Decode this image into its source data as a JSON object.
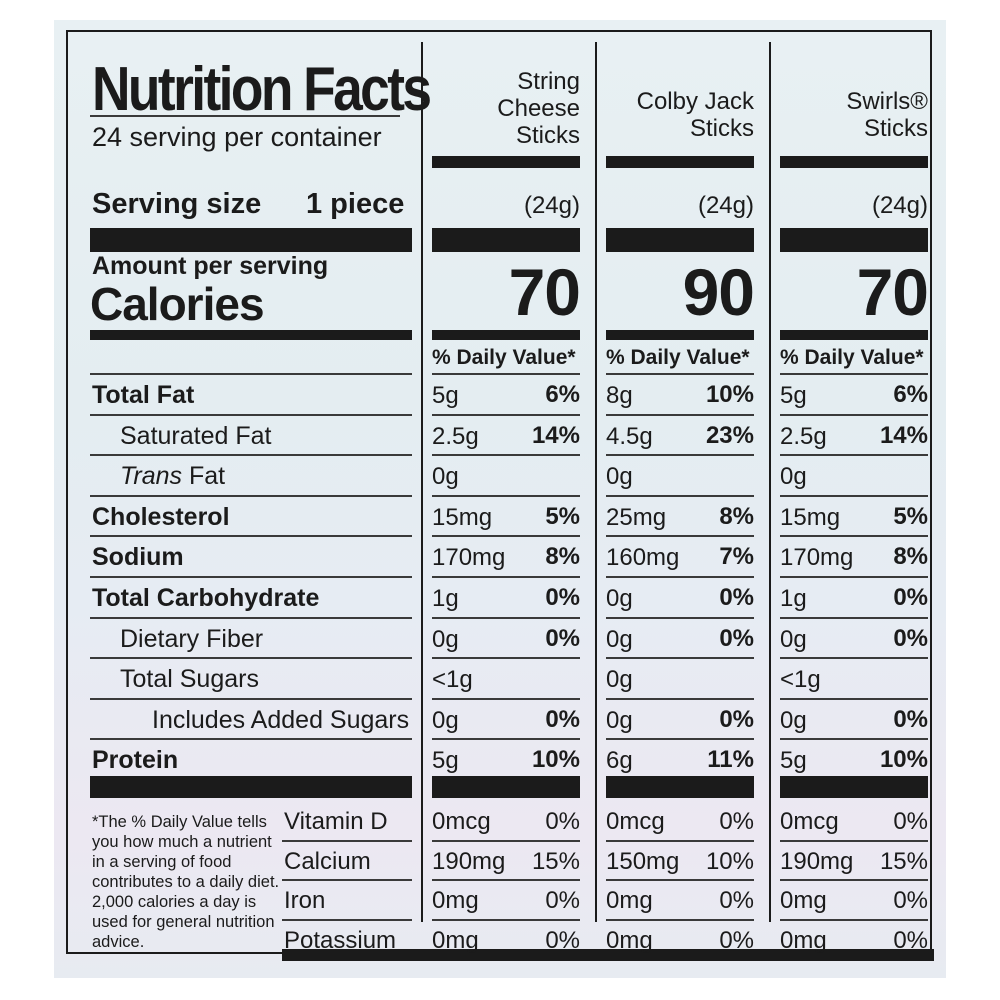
{
  "title": "Nutrition Facts",
  "servings_per_container": "24 serving per container",
  "serving_size_label": "Serving size",
  "serving_size_value": "1 piece",
  "amount_per_serving": "Amount per serving",
  "calories_label": "Calories",
  "dv_header": "% Daily Value*",
  "products": [
    {
      "name_lines": [
        "String",
        "Cheese",
        "Sticks"
      ],
      "size": "(24g)",
      "calories": "70"
    },
    {
      "name_lines": [
        "Colby Jack",
        "Sticks"
      ],
      "size": "(24g)",
      "calories": "90"
    },
    {
      "name_lines": [
        "Swirls®",
        "Sticks"
      ],
      "size": "(24g)",
      "calories": "70"
    }
  ],
  "nutrients": [
    {
      "label": "Total Fat",
      "bold": true,
      "values": [
        [
          "5g",
          "6%"
        ],
        [
          "8g",
          "10%"
        ],
        [
          "5g",
          "6%"
        ]
      ]
    },
    {
      "label": "Saturated Fat",
      "bold": false,
      "values": [
        [
          "2.5g",
          "14%"
        ],
        [
          "4.5g",
          "23%"
        ],
        [
          "2.5g",
          "14%"
        ]
      ]
    },
    {
      "label_italic": "Trans",
      "label_rest": " Fat",
      "bold": false,
      "values": [
        [
          "0g",
          ""
        ],
        [
          "0g",
          ""
        ],
        [
          "0g",
          ""
        ]
      ]
    },
    {
      "label": "Cholesterol",
      "bold": true,
      "values": [
        [
          "15mg",
          "5%"
        ],
        [
          "25mg",
          "8%"
        ],
        [
          "15mg",
          "5%"
        ]
      ]
    },
    {
      "label": "Sodium",
      "bold": true,
      "values": [
        [
          "170mg",
          "8%"
        ],
        [
          "160mg",
          "7%"
        ],
        [
          "170mg",
          "8%"
        ]
      ]
    },
    {
      "label": "Total Carbohydrate",
      "bold": true,
      "values": [
        [
          "1g",
          "0%"
        ],
        [
          "0g",
          "0%"
        ],
        [
          "1g",
          "0%"
        ]
      ]
    },
    {
      "label": "Dietary Fiber",
      "bold": false,
      "values": [
        [
          "0g",
          "0%"
        ],
        [
          "0g",
          "0%"
        ],
        [
          "0g",
          "0%"
        ]
      ]
    },
    {
      "label": "Total Sugars",
      "bold": false,
      "values": [
        [
          "<1g",
          ""
        ],
        [
          "0g",
          ""
        ],
        [
          "<1g",
          ""
        ]
      ]
    },
    {
      "label": "Includes Added Sugars",
      "bold": false,
      "values": [
        [
          "0g",
          "0%"
        ],
        [
          "0g",
          "0%"
        ],
        [
          "0g",
          "0%"
        ]
      ]
    },
    {
      "label": "Protein",
      "bold": true,
      "values": [
        [
          "5g",
          "10%"
        ],
        [
          "6g",
          "11%"
        ],
        [
          "5g",
          "10%"
        ]
      ]
    }
  ],
  "vitamins": [
    {
      "label": "Vitamin D",
      "values": [
        [
          "0mcg",
          "0%"
        ],
        [
          "0mcg",
          "0%"
        ],
        [
          "0mcg",
          "0%"
        ]
      ]
    },
    {
      "label": "Calcium",
      "values": [
        [
          "190mg",
          "15%"
        ],
        [
          "150mg",
          "10%"
        ],
        [
          "190mg",
          "15%"
        ]
      ]
    },
    {
      "label": "Iron",
      "values": [
        [
          "0mg",
          "0%"
        ],
        [
          "0mg",
          "0%"
        ],
        [
          "0mg",
          "0%"
        ]
      ]
    },
    {
      "label": "Potassium",
      "values": [
        [
          "0mg",
          "0%"
        ],
        [
          "0mg",
          "0%"
        ],
        [
          "0mg",
          "0%"
        ]
      ]
    }
  ],
  "footnote": "*The % Daily Value tells you how much a nutrient in a serving of food contributes to a daily diet. 2,000 calories a day is used for general nutrition advice."
}
